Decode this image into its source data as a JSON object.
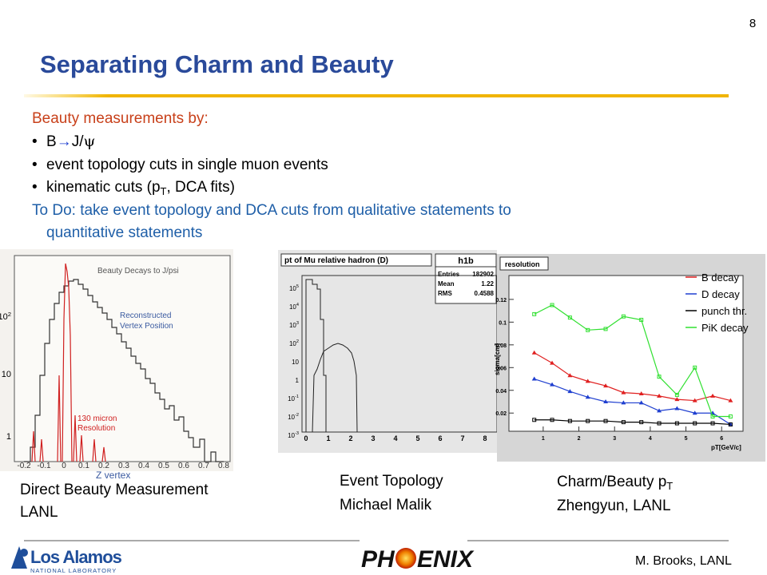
{
  "slide_number": "8",
  "title": "Separating Charm and Beauty",
  "body": {
    "intro": "Beauty measurements by:",
    "bullets": [
      [
        "B",
        "→",
        "J/",
        "ψ"
      ],
      [
        "event topology cuts in single muon events"
      ],
      [
        "kinematic cuts (p",
        "T",
        ", DCA fits)"
      ]
    ],
    "todo": [
      "To Do: take event topology and DCA cuts from qualitative statements to",
      "quantitative statements"
    ]
  },
  "figures": [
    {
      "title": "Beauty Decays to J/psi",
      "annotation": [
        "Reconstructed",
        "Vertex Position"
      ],
      "annotation2": [
        "130 micron",
        "Resolution"
      ],
      "xlabel": "Z vertex",
      "xticks": [
        "-0.2",
        "-0.1",
        "0",
        "0.1",
        "0.2",
        "0.3",
        "0.4",
        "0.5",
        "0.6",
        "0.7",
        "0.8"
      ],
      "yticks": [
        [
          "10",
          "2"
        ],
        [
          "10",
          ""
        ],
        [
          "1",
          ""
        ]
      ],
      "caption": [
        "Direct Beauty Measurement",
        "LANL"
      ]
    },
    {
      "title": "pt of Mu relative hadron (D)",
      "stats_title": "h1b",
      "stats": [
        [
          "Entries",
          "182902"
        ],
        [
          "Mean",
          "1.22"
        ],
        [
          "RMS",
          "0.4588"
        ]
      ],
      "yticks": [
        [
          "10",
          "5"
        ],
        [
          "10",
          "4"
        ],
        [
          "10",
          "3"
        ],
        [
          "10",
          "2"
        ],
        [
          "10",
          ""
        ],
        [
          "1",
          ""
        ],
        [
          "10",
          "-1"
        ],
        [
          "10",
          "-2"
        ],
        [
          "10",
          "-3"
        ]
      ],
      "xticks": [
        "0",
        "1",
        "2",
        "3",
        "4",
        "5",
        "6",
        "7",
        "8"
      ],
      "caption": [
        "Event Topology",
        "Michael Malik"
      ]
    },
    {
      "chart_data": {
        "type": "line",
        "title": "resolution",
        "xlabel": "pT[GeV/c]",
        "ylabel": "sigma[cm]",
        "x": [
          0.75,
          1.25,
          1.75,
          2.25,
          2.75,
          3.25,
          3.75,
          4.25,
          4.75,
          5.25,
          5.75,
          6.25
        ],
        "xlim": [
          0.04,
          6.6
        ],
        "xticks": [
          1,
          2,
          3,
          4,
          5,
          6
        ],
        "ylim": [
          0.004,
          0.141
        ],
        "yticks": [
          0.02,
          0.04,
          0.06,
          0.08,
          0.1,
          0.12
        ],
        "legend": "upper right",
        "series": [
          {
            "name": "B decay",
            "color": "#e02020",
            "values": [
              0.073,
              0.064,
              0.053,
              0.048,
              0.044,
              0.038,
              0.037,
              0.035,
              0.032,
              0.031,
              0.035,
              0.031
            ]
          },
          {
            "name": "D decay",
            "color": "#1f3fd0",
            "values": [
              0.05,
              0.045,
              0.039,
              0.034,
              0.03,
              0.029,
              0.029,
              0.022,
              0.024,
              0.02,
              0.02,
              0.01
            ]
          },
          {
            "name": "punch thr.",
            "color": "#000000",
            "values": [
              0.014,
              0.014,
              0.013,
              0.013,
              0.013,
              0.012,
              0.012,
              0.011,
              0.011,
              0.011,
              0.011,
              0.01
            ]
          },
          {
            "name": "PiK decay",
            "color": "#30e030",
            "values": [
              0.107,
              0.115,
              0.104,
              0.093,
              0.094,
              0.105,
              0.102,
              0.052,
              0.036,
              0.06,
              0.017,
              0.017
            ]
          }
        ]
      },
      "caption": [
        [
          "Charm/Beauty p",
          "T"
        ],
        "Zhengyun, LANL"
      ]
    }
  ],
  "footer": {
    "lab": [
      "Los Alamos",
      "NATIONAL LABORATORY"
    ],
    "experiment": [
      "PH",
      "ENIX"
    ],
    "author": "M. Brooks, LANL"
  }
}
